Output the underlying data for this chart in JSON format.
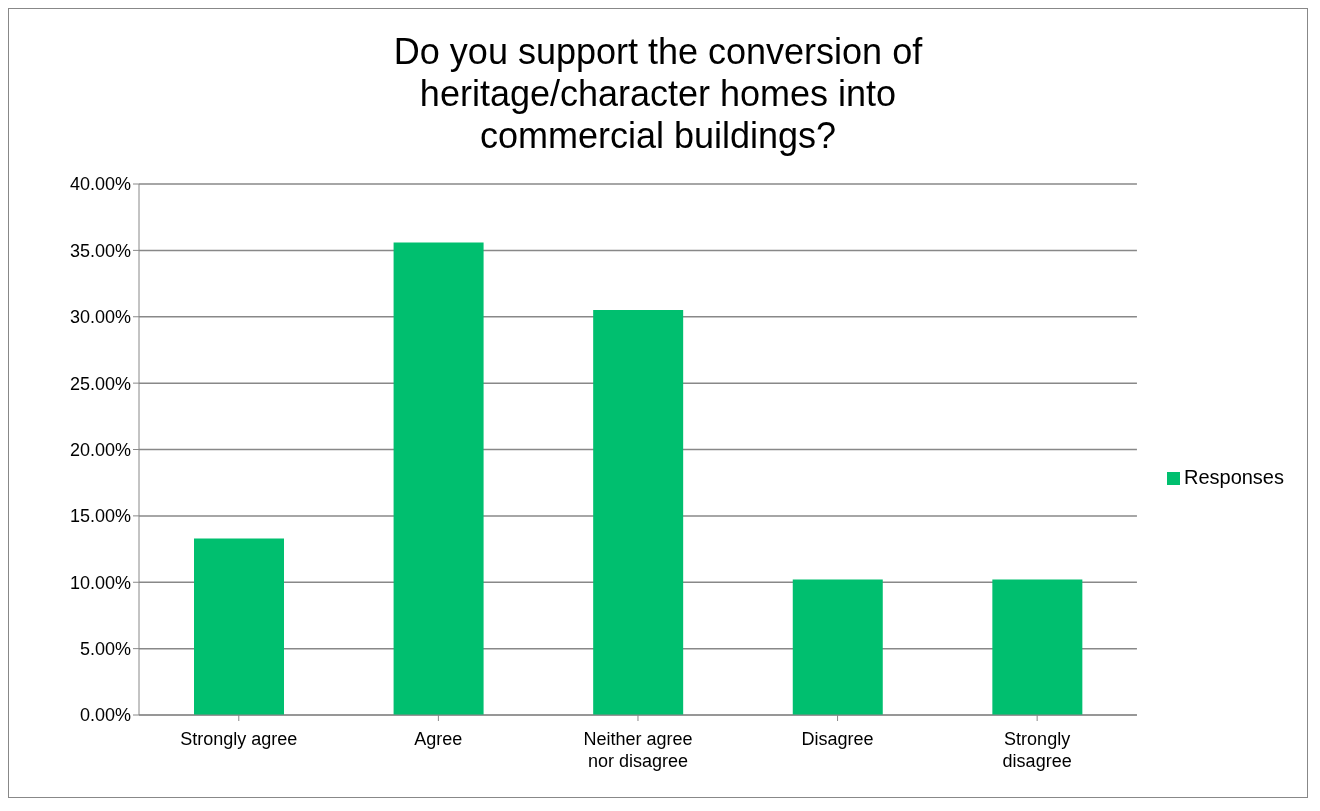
{
  "chart_data": {
    "type": "bar",
    "title": "Do you support the conversion of heritage/character homes into commercial buildings?",
    "categories": [
      "Strongly agree",
      "Agree",
      "Neither agree nor disagree",
      "Disagree",
      "Strongly disagree"
    ],
    "series": [
      {
        "name": "Responses",
        "color": "#00bf6f",
        "values": [
          13.3,
          35.6,
          30.5,
          10.2,
          10.2
        ]
      }
    ],
    "ylim": [
      0,
      40
    ],
    "yticks": [
      {
        "value": 0,
        "label": "0.00%"
      },
      {
        "value": 5,
        "label": "5.00%"
      },
      {
        "value": 10,
        "label": "10.00%"
      },
      {
        "value": 15,
        "label": "15.00%"
      },
      {
        "value": 20,
        "label": "20.00%"
      },
      {
        "value": 25,
        "label": "25.00%"
      },
      {
        "value": 30,
        "label": "30.00%"
      },
      {
        "value": 35,
        "label": "35.00%"
      },
      {
        "value": 40,
        "label": "40.00%"
      }
    ],
    "grid": "y",
    "legend": "right"
  }
}
